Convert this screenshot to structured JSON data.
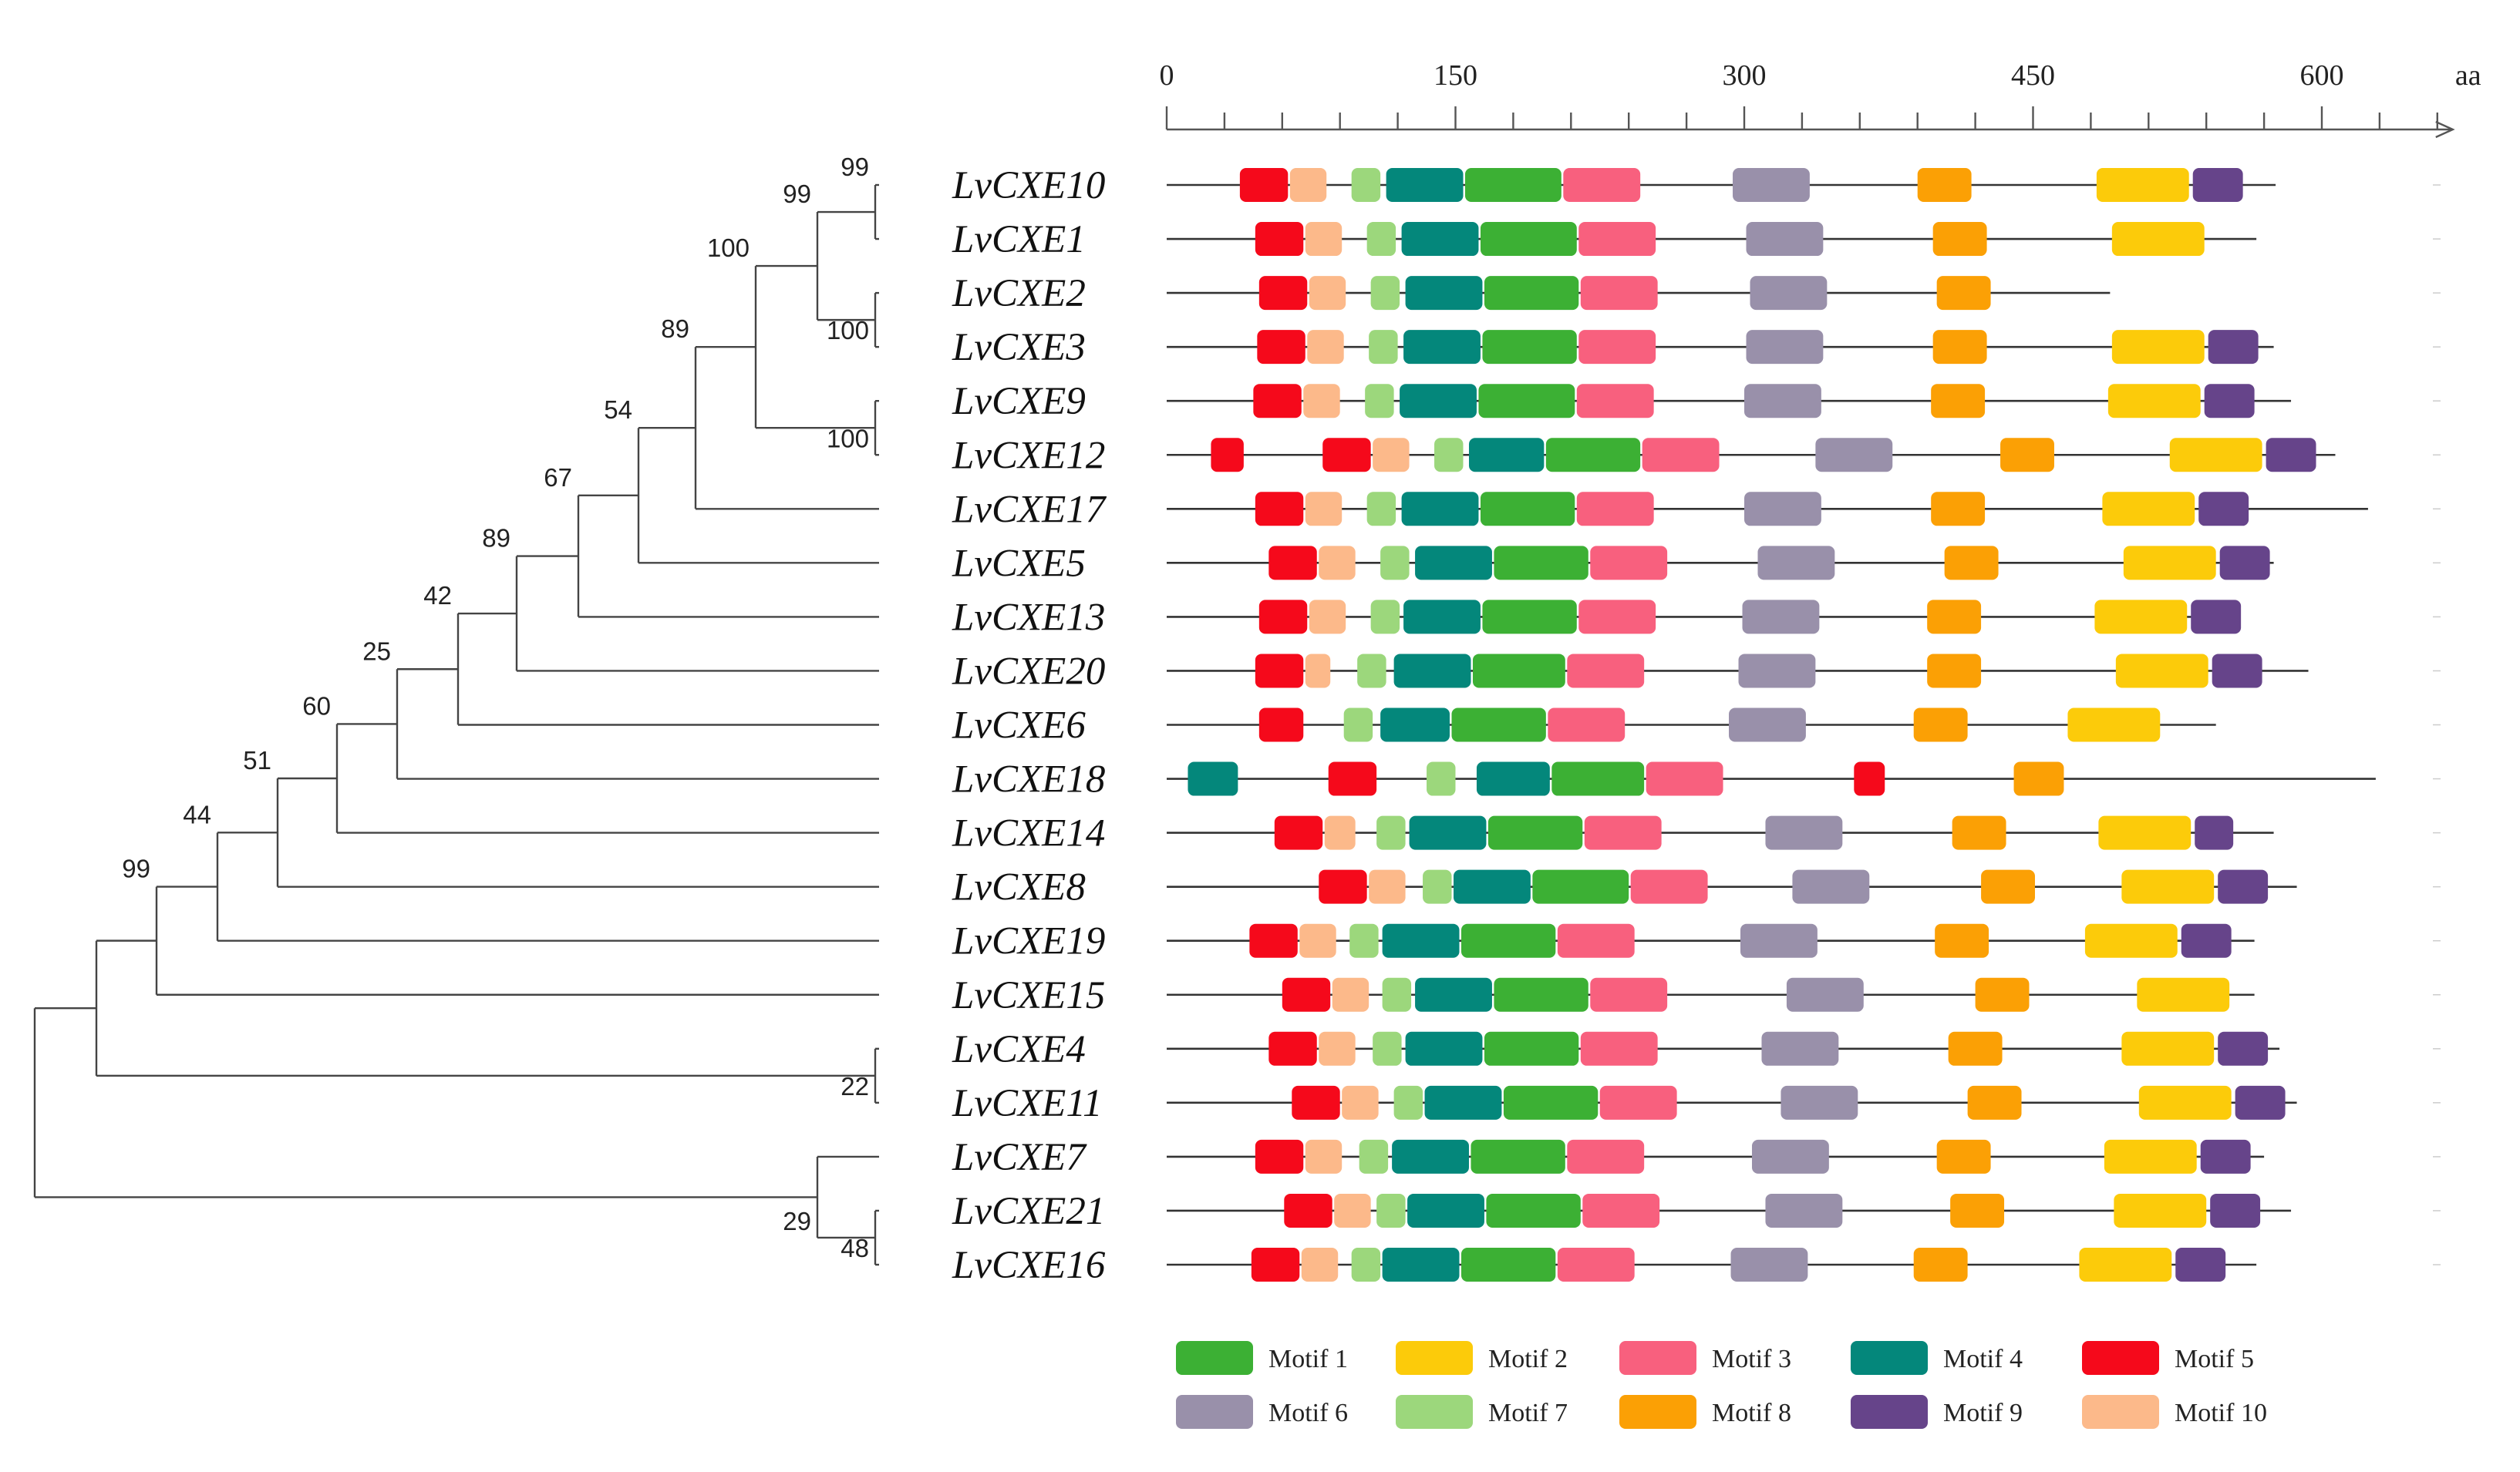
{
  "axis": {
    "unit": "aa",
    "min": 0,
    "max": 660,
    "tick_labels": [
      "0",
      "150",
      "300",
      "450",
      "600"
    ],
    "tick_values": [
      0,
      150,
      300,
      450,
      600
    ],
    "minor_step": 30
  },
  "motif_colors": {
    "1": "#3cb034",
    "2": "#fccb0a",
    "3": "#f8607e",
    "4": "#04877b",
    "5": "#f5091b",
    "6": "#9990aa",
    "7": "#9cd77c",
    "8": "#fba005",
    "9": "#66448a",
    "10": "#fcb98a"
  },
  "legend": [
    {
      "motif": "1",
      "label": "Motif 1"
    },
    {
      "motif": "2",
      "label": "Motif 2"
    },
    {
      "motif": "3",
      "label": "Motif 3"
    },
    {
      "motif": "4",
      "label": "Motif 4"
    },
    {
      "motif": "5",
      "label": "Motif 5"
    },
    {
      "motif": "6",
      "label": "Motif 6"
    },
    {
      "motif": "7",
      "label": "Motif 7"
    },
    {
      "motif": "8",
      "label": "Motif 8"
    },
    {
      "motif": "9",
      "label": "Motif 9"
    },
    {
      "motif": "10",
      "label": "Motif 10"
    }
  ],
  "genes": [
    {
      "name": "LvCXE10",
      "length": 576,
      "motifs": [
        [
          "5",
          38,
          63
        ],
        [
          "10",
          64,
          83
        ],
        [
          "7",
          96,
          111
        ],
        [
          "4",
          114,
          154
        ],
        [
          "1",
          155,
          205
        ],
        [
          "3",
          206,
          246
        ],
        [
          "6",
          294,
          334
        ],
        [
          "8",
          390,
          418
        ],
        [
          "2",
          483,
          531
        ],
        [
          "9",
          533,
          559
        ]
      ]
    },
    {
      "name": "LvCXE1",
      "length": 566,
      "motifs": [
        [
          "5",
          46,
          71
        ],
        [
          "10",
          72,
          91
        ],
        [
          "7",
          104,
          119
        ],
        [
          "4",
          122,
          162
        ],
        [
          "1",
          163,
          213
        ],
        [
          "3",
          214,
          254
        ],
        [
          "6",
          301,
          341
        ],
        [
          "8",
          398,
          426
        ],
        [
          "2",
          491,
          539
        ]
      ]
    },
    {
      "name": "LvCXE2",
      "length": 490,
      "motifs": [
        [
          "5",
          48,
          73
        ],
        [
          "10",
          74,
          93
        ],
        [
          "7",
          106,
          121
        ],
        [
          "4",
          124,
          164
        ],
        [
          "1",
          165,
          214
        ],
        [
          "3",
          215,
          255
        ],
        [
          "6",
          303,
          343
        ],
        [
          "8",
          400,
          428
        ]
      ]
    },
    {
      "name": "LvCXE3",
      "length": 575,
      "motifs": [
        [
          "5",
          47,
          72
        ],
        [
          "10",
          73,
          92
        ],
        [
          "7",
          105,
          120
        ],
        [
          "4",
          123,
          163
        ],
        [
          "1",
          164,
          213
        ],
        [
          "3",
          214,
          254
        ],
        [
          "6",
          301,
          341
        ],
        [
          "8",
          398,
          426
        ],
        [
          "2",
          491,
          539
        ],
        [
          "9",
          541,
          567
        ]
      ]
    },
    {
      "name": "LvCXE9",
      "length": 584,
      "motifs": [
        [
          "5",
          45,
          70
        ],
        [
          "10",
          71,
          90
        ],
        [
          "7",
          103,
          118
        ],
        [
          "4",
          121,
          161
        ],
        [
          "1",
          162,
          212
        ],
        [
          "3",
          213,
          253
        ],
        [
          "6",
          300,
          340
        ],
        [
          "8",
          397,
          425
        ],
        [
          "2",
          489,
          537
        ],
        [
          "9",
          539,
          565
        ]
      ]
    },
    {
      "name": "LvCXE12",
      "length": 607,
      "motifs": [
        [
          "5",
          23,
          40
        ],
        [
          "5",
          81,
          106
        ],
        [
          "10",
          107,
          126
        ],
        [
          "7",
          139,
          154
        ],
        [
          "4",
          157,
          196
        ],
        [
          "1",
          197,
          246
        ],
        [
          "3",
          247,
          287
        ],
        [
          "6",
          337,
          377
        ],
        [
          "8",
          433,
          461
        ],
        [
          "2",
          521,
          569
        ],
        [
          "9",
          571,
          597
        ]
      ]
    },
    {
      "name": "LvCXE17",
      "length": 624,
      "motifs": [
        [
          "5",
          46,
          71
        ],
        [
          "10",
          72,
          91
        ],
        [
          "7",
          104,
          119
        ],
        [
          "4",
          122,
          162
        ],
        [
          "1",
          163,
          212
        ],
        [
          "3",
          213,
          253
        ],
        [
          "6",
          300,
          340
        ],
        [
          "8",
          397,
          425
        ],
        [
          "2",
          486,
          534
        ],
        [
          "9",
          536,
          562
        ]
      ]
    },
    {
      "name": "LvCXE5",
      "length": 575,
      "motifs": [
        [
          "5",
          53,
          78
        ],
        [
          "10",
          79,
          98
        ],
        [
          "7",
          111,
          126
        ],
        [
          "4",
          129,
          169
        ],
        [
          "1",
          170,
          219
        ],
        [
          "3",
          220,
          260
        ],
        [
          "6",
          307,
          347
        ],
        [
          "8",
          404,
          432
        ],
        [
          "2",
          497,
          545
        ],
        [
          "9",
          547,
          573
        ]
      ]
    },
    {
      "name": "LvCXE13",
      "length": 550,
      "motifs": [
        [
          "5",
          48,
          73
        ],
        [
          "10",
          74,
          93
        ],
        [
          "7",
          106,
          121
        ],
        [
          "4",
          123,
          163
        ],
        [
          "1",
          164,
          213
        ],
        [
          "3",
          214,
          254
        ],
        [
          "6",
          299,
          339
        ],
        [
          "8",
          395,
          423
        ],
        [
          "2",
          482,
          530
        ],
        [
          "9",
          532,
          558
        ]
      ]
    },
    {
      "name": "LvCXE20",
      "length": 593,
      "motifs": [
        [
          "5",
          46,
          71
        ],
        [
          "10",
          72,
          85
        ],
        [
          "7",
          99,
          114
        ],
        [
          "4",
          118,
          158
        ],
        [
          "1",
          159,
          207
        ],
        [
          "3",
          208,
          248
        ],
        [
          "6",
          297,
          337
        ],
        [
          "8",
          395,
          423
        ],
        [
          "2",
          493,
          541
        ],
        [
          "9",
          543,
          569
        ]
      ]
    },
    {
      "name": "LvCXE6",
      "length": 545,
      "motifs": [
        [
          "5",
          48,
          71
        ],
        [
          "7",
          92,
          107
        ],
        [
          "4",
          111,
          147
        ],
        [
          "1",
          148,
          197
        ],
        [
          "3",
          198,
          238
        ],
        [
          "6",
          292,
          332
        ],
        [
          "8",
          388,
          416
        ],
        [
          "2",
          468,
          516
        ]
      ]
    },
    {
      "name": "LvCXE18",
      "length": 628,
      "motifs": [
        [
          "4",
          11,
          37
        ],
        [
          "5",
          84,
          109
        ],
        [
          "7",
          135,
          150
        ],
        [
          "4",
          161,
          199
        ],
        [
          "1",
          200,
          248
        ],
        [
          "3",
          249,
          289
        ],
        [
          "5",
          357,
          373
        ],
        [
          "8",
          440,
          466
        ]
      ]
    },
    {
      "name": "LvCXE14",
      "length": 575,
      "motifs": [
        [
          "5",
          56,
          81
        ],
        [
          "10",
          82,
          98
        ],
        [
          "7",
          109,
          124
        ],
        [
          "4",
          126,
          166
        ],
        [
          "1",
          167,
          216
        ],
        [
          "3",
          217,
          257
        ],
        [
          "6",
          311,
          351
        ],
        [
          "8",
          408,
          436
        ],
        [
          "2",
          484,
          532
        ],
        [
          "9",
          534,
          554
        ]
      ]
    },
    {
      "name": "LvCXE8",
      "length": 587,
      "motifs": [
        [
          "5",
          79,
          104
        ],
        [
          "10",
          105,
          124
        ],
        [
          "7",
          133,
          148
        ],
        [
          "4",
          149,
          189
        ],
        [
          "1",
          190,
          240
        ],
        [
          "3",
          241,
          281
        ],
        [
          "6",
          325,
          365
        ],
        [
          "8",
          423,
          451
        ],
        [
          "2",
          496,
          544
        ],
        [
          "9",
          546,
          572
        ]
      ]
    },
    {
      "name": "LvCXE19",
      "length": 565,
      "motifs": [
        [
          "5",
          43,
          68
        ],
        [
          "10",
          69,
          88
        ],
        [
          "7",
          95,
          110
        ],
        [
          "4",
          112,
          152
        ],
        [
          "1",
          153,
          202
        ],
        [
          "3",
          203,
          243
        ],
        [
          "6",
          298,
          338
        ],
        [
          "8",
          399,
          427
        ],
        [
          "2",
          477,
          525
        ],
        [
          "9",
          527,
          553
        ]
      ]
    },
    {
      "name": "LvCXE15",
      "length": 565,
      "motifs": [
        [
          "5",
          60,
          85
        ],
        [
          "10",
          86,
          105
        ],
        [
          "7",
          112,
          127
        ],
        [
          "4",
          129,
          169
        ],
        [
          "1",
          170,
          219
        ],
        [
          "3",
          220,
          260
        ],
        [
          "6",
          322,
          362
        ],
        [
          "8",
          420,
          448
        ],
        [
          "2",
          504,
          552
        ]
      ]
    },
    {
      "name": "LvCXE4",
      "length": 578,
      "motifs": [
        [
          "5",
          53,
          78
        ],
        [
          "10",
          79,
          98
        ],
        [
          "7",
          107,
          122
        ],
        [
          "4",
          124,
          164
        ],
        [
          "1",
          165,
          214
        ],
        [
          "3",
          215,
          255
        ],
        [
          "6",
          309,
          349
        ],
        [
          "8",
          406,
          434
        ],
        [
          "2",
          496,
          544
        ],
        [
          "9",
          546,
          572
        ]
      ]
    },
    {
      "name": "LvCXE11",
      "length": 587,
      "motifs": [
        [
          "5",
          65,
          90
        ],
        [
          "10",
          91,
          110
        ],
        [
          "7",
          118,
          133
        ],
        [
          "4",
          134,
          174
        ],
        [
          "1",
          175,
          224
        ],
        [
          "3",
          225,
          265
        ],
        [
          "6",
          319,
          359
        ],
        [
          "8",
          416,
          444
        ],
        [
          "2",
          505,
          553
        ],
        [
          "9",
          555,
          581
        ]
      ]
    },
    {
      "name": "LvCXE7",
      "length": 570,
      "motifs": [
        [
          "5",
          46,
          71
        ],
        [
          "10",
          72,
          91
        ],
        [
          "7",
          100,
          115
        ],
        [
          "4",
          117,
          157
        ],
        [
          "1",
          158,
          207
        ],
        [
          "3",
          208,
          248
        ],
        [
          "6",
          304,
          344
        ],
        [
          "8",
          400,
          428
        ],
        [
          "2",
          487,
          535
        ],
        [
          "9",
          537,
          563
        ]
      ]
    },
    {
      "name": "LvCXE21",
      "length": 584,
      "motifs": [
        [
          "5",
          61,
          86
        ],
        [
          "10",
          87,
          106
        ],
        [
          "7",
          109,
          124
        ],
        [
          "4",
          125,
          165
        ],
        [
          "1",
          166,
          215
        ],
        [
          "3",
          216,
          256
        ],
        [
          "6",
          311,
          351
        ],
        [
          "8",
          407,
          435
        ],
        [
          "2",
          492,
          540
        ],
        [
          "9",
          542,
          568
        ]
      ]
    },
    {
      "name": "LvCXE16",
      "length": 566,
      "motifs": [
        [
          "5",
          44,
          69
        ],
        [
          "10",
          70,
          89
        ],
        [
          "7",
          96,
          111
        ],
        [
          "4",
          112,
          152
        ],
        [
          "1",
          153,
          202
        ],
        [
          "3",
          203,
          243
        ],
        [
          "6",
          293,
          333
        ],
        [
          "8",
          388,
          416
        ],
        [
          "2",
          474,
          522
        ],
        [
          "9",
          524,
          550
        ]
      ]
    }
  ],
  "tree": {
    "nodes": [
      {
        "id": "n10_1",
        "children": [
          "LvCXE10",
          "LvCXE1"
        ],
        "bootstrap": "99",
        "label_pos": "above"
      },
      {
        "id": "n2_3",
        "children": [
          "LvCXE2",
          "LvCXE3"
        ],
        "bootstrap": "100",
        "label_pos": "below"
      },
      {
        "id": "n9_12",
        "children": [
          "LvCXE9",
          "LvCXE12"
        ],
        "bootstrap": "100",
        "label_pos": "below"
      },
      {
        "id": "nA",
        "children": [
          "n10_1",
          "n2_3"
        ],
        "bootstrap": "99",
        "label_pos": "above"
      },
      {
        "id": "nB",
        "children": [
          "nA",
          "n9_12"
        ],
        "bootstrap": "100",
        "label_pos": "above"
      },
      {
        "id": "nC",
        "children": [
          "nB",
          "LvCXE17"
        ],
        "bootstrap": "89",
        "label_pos": "above"
      },
      {
        "id": "nD",
        "children": [
          "nC",
          "LvCXE5"
        ],
        "bootstrap": "54",
        "label_pos": "above"
      },
      {
        "id": "nE",
        "children": [
          "nD",
          "LvCXE13"
        ],
        "bootstrap": "67",
        "label_pos": "above"
      },
      {
        "id": "nF",
        "children": [
          "nE",
          "LvCXE20"
        ],
        "bootstrap": "89",
        "label_pos": "above"
      },
      {
        "id": "nG",
        "children": [
          "nF",
          "LvCXE6"
        ],
        "bootstrap": "42",
        "label_pos": "above"
      },
      {
        "id": "nH",
        "children": [
          "nG",
          "LvCXE18"
        ],
        "bootstrap": "25",
        "label_pos": "above"
      },
      {
        "id": "nI",
        "children": [
          "nH",
          "LvCXE14"
        ],
        "bootstrap": "60",
        "label_pos": "above"
      },
      {
        "id": "nJ",
        "children": [
          "nI",
          "LvCXE8"
        ],
        "bootstrap": "51",
        "label_pos": "above"
      },
      {
        "id": "nK",
        "children": [
          "nJ",
          "LvCXE19"
        ],
        "bootstrap": "44",
        "label_pos": "above"
      },
      {
        "id": "nL",
        "children": [
          "nK",
          "LvCXE15"
        ],
        "bootstrap": "99",
        "label_pos": "above"
      },
      {
        "id": "n4_11",
        "children": [
          "LvCXE4",
          "LvCXE11"
        ],
        "bootstrap": "22",
        "label_pos": "below"
      },
      {
        "id": "nM",
        "children": [
          "nL",
          "n4_11"
        ],
        "bootstrap": "",
        "label_pos": "above"
      },
      {
        "id": "n21_16",
        "children": [
          "LvCXE21",
          "LvCXE16"
        ],
        "bootstrap": "48",
        "label_pos": "below"
      },
      {
        "id": "nN",
        "children": [
          "LvCXE7",
          "n21_16"
        ],
        "bootstrap": "29",
        "label_pos": "below"
      },
      {
        "id": "root",
        "children": [
          "nM",
          "nN"
        ],
        "bootstrap": "",
        "label_pos": "above"
      }
    ]
  }
}
